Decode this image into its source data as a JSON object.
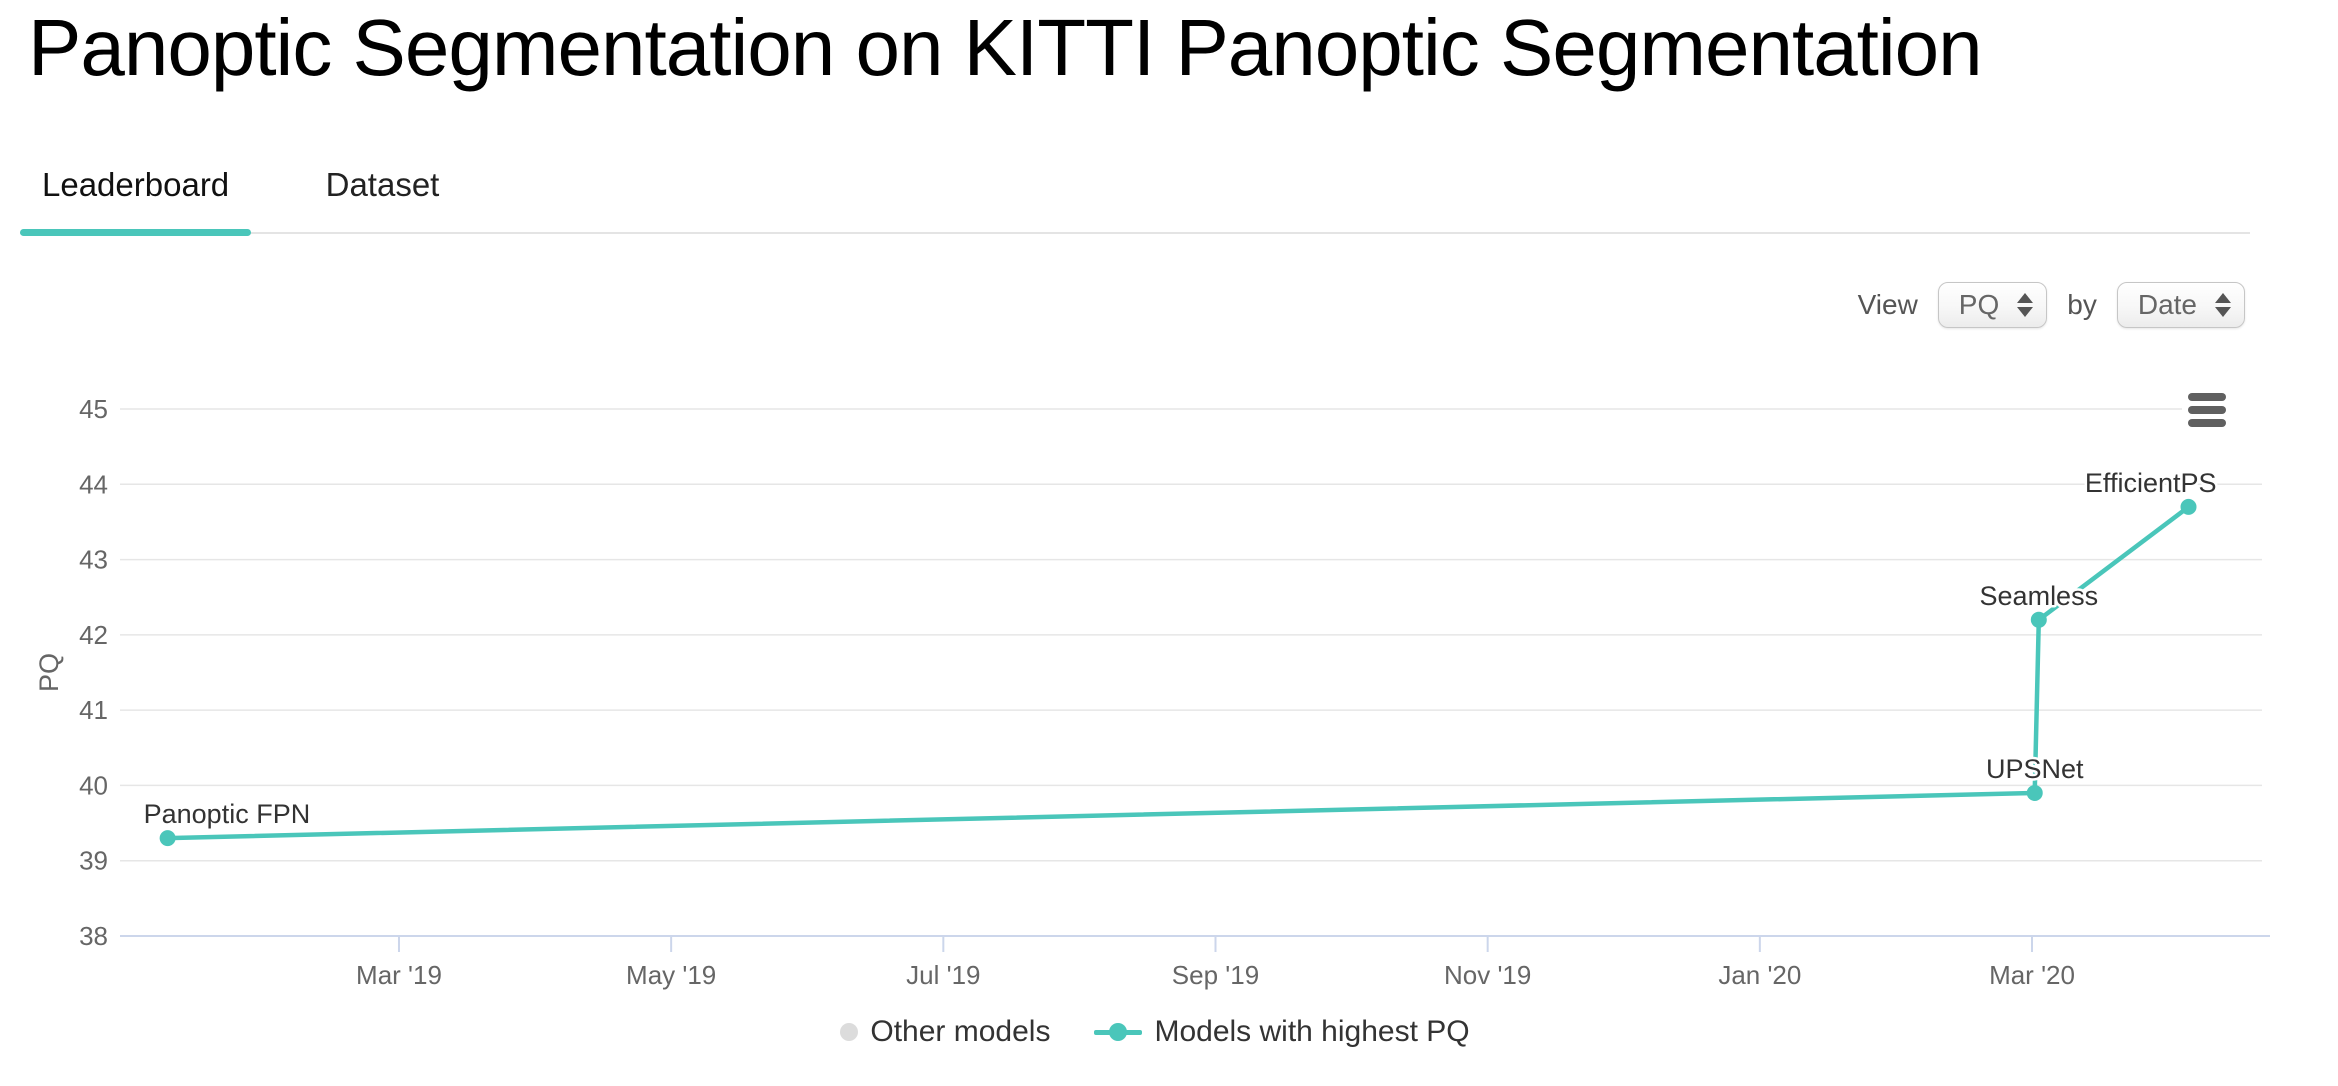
{
  "header": {
    "title": "Panoptic Segmentation on KITTI Panoptic Segmentation"
  },
  "tabs": [
    {
      "label": "Leaderboard",
      "active": true
    },
    {
      "label": "Dataset",
      "active": false
    }
  ],
  "controls": {
    "view_label": "View",
    "metric_value": "PQ",
    "by_label": "by",
    "group_value": "Date"
  },
  "theme": {
    "accent": "#4ac6ba",
    "tab_rule": "#e4e4e4"
  },
  "chart_data": {
    "type": "line",
    "title": "",
    "xlabel": "",
    "ylabel": "PQ",
    "ylim": [
      38,
      45
    ],
    "grid": true,
    "legend_position": "bottom",
    "y_ticks": [
      45,
      44,
      43,
      42,
      41,
      40,
      39,
      38
    ],
    "x_range_months": [
      -0.05,
      15.69
    ],
    "x_ticks": [
      {
        "m": 2,
        "label": "Mar '19"
      },
      {
        "m": 4,
        "label": "May '19"
      },
      {
        "m": 6,
        "label": "Jul '19"
      },
      {
        "m": 8,
        "label": "Sep '19"
      },
      {
        "m": 10,
        "label": "Nov '19"
      },
      {
        "m": 12,
        "label": "Jan '20"
      },
      {
        "m": 14,
        "label": "Mar '20"
      }
    ],
    "series": [
      {
        "name": "Models with highest PQ",
        "color": "#4ac6ba",
        "points": [
          {
            "model": "Panoptic FPN",
            "date": "Jan '19",
            "m": 0.3,
            "pq": 39.3,
            "label_anchor": "start",
            "label_dx": -24
          },
          {
            "model": "UPSNet",
            "date": "Mar '20",
            "m": 14.02,
            "pq": 39.9,
            "label_anchor": "middle",
            "label_dx": 0
          },
          {
            "model": "Seamless",
            "date": "Mar '20",
            "m": 14.05,
            "pq": 42.2,
            "label_anchor": "middle",
            "label_dx": 0
          },
          {
            "model": "EfficientPS",
            "date": "Apr '20",
            "m": 15.15,
            "pq": 43.7,
            "label_anchor": "end",
            "label_dx": 28
          }
        ]
      }
    ],
    "legend": [
      {
        "label": "Other models",
        "color": "#dcdcdc",
        "marker": "dot"
      },
      {
        "label": "Models with highest PQ",
        "color": "#4ac6ba",
        "marker": "line-dot"
      }
    ],
    "colors": {
      "grid": "#e6e6e6",
      "axis_line": "#ccd6eb",
      "tick_text": "#666666",
      "point_label_text": "#333333"
    }
  }
}
